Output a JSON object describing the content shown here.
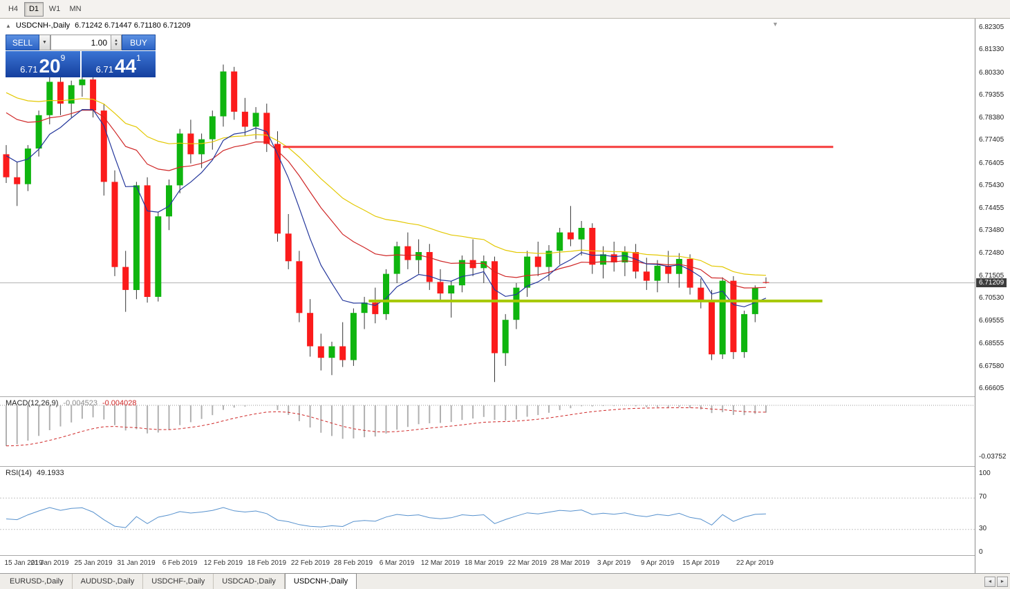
{
  "toolbar": {
    "timeframes": [
      {
        "label": "H4",
        "active": false
      },
      {
        "label": "D1",
        "active": true
      },
      {
        "label": "W1",
        "active": false
      },
      {
        "label": "MN",
        "active": false
      }
    ]
  },
  "chart": {
    "symbol_title": "USDCNH-,Daily",
    "ohlc_text": "6.71242 6.71447 6.71180 6.71209"
  },
  "one_click": {
    "sell_label": "SELL",
    "buy_label": "BUY",
    "volume": "1.00",
    "sell_price": {
      "head": "6.71",
      "big": "20",
      "sup": "9"
    },
    "buy_price": {
      "head": "6.71",
      "big": "44",
      "sup": "1"
    }
  },
  "price_axis": {
    "labels": [
      "6.82305",
      "6.81330",
      "6.80330",
      "6.79355",
      "6.78380",
      "6.77405",
      "6.76405",
      "6.75430",
      "6.74455",
      "6.73480",
      "6.72480",
      "6.71505",
      "6.70530",
      "6.69555",
      "6.68555",
      "6.67580",
      "6.66605"
    ],
    "current_tag": "6.71209"
  },
  "macd_panel": {
    "name": "MACD(12,26,9)",
    "main_value": "-0.004523",
    "signal_value": "-0.004028",
    "axis_label": "-0.03752"
  },
  "rsi_panel": {
    "name": "RSI(14)",
    "value": "49.1933",
    "levels": [
      100,
      70,
      30,
      0
    ]
  },
  "x_axis": {
    "labels": [
      {
        "text": "15 Jan 2019",
        "i": 0
      },
      {
        "text": "21 Jan 2019",
        "i": 4
      },
      {
        "text": "25 Jan 2019",
        "i": 8
      },
      {
        "text": "31 Jan 2019",
        "i": 12
      },
      {
        "text": "6 Feb 2019",
        "i": 16
      },
      {
        "text": "12 Feb 2019",
        "i": 20
      },
      {
        "text": "18 Feb 2019",
        "i": 24
      },
      {
        "text": "22 Feb 2019",
        "i": 28
      },
      {
        "text": "28 Feb 2019",
        "i": 32
      },
      {
        "text": "6 Mar 2019",
        "i": 36
      },
      {
        "text": "12 Mar 2019",
        "i": 40
      },
      {
        "text": "18 Mar 2019",
        "i": 44
      },
      {
        "text": "22 Mar 2019",
        "i": 48
      },
      {
        "text": "28 Mar 2019",
        "i": 52
      },
      {
        "text": "3 Apr 2019",
        "i": 56
      },
      {
        "text": "9 Apr 2019",
        "i": 60
      },
      {
        "text": "15 Apr 2019",
        "i": 64
      },
      {
        "text": "22 Apr 2019",
        "i": 69
      }
    ]
  },
  "tabs": {
    "items": [
      {
        "label": "EURUSD-,Daily",
        "active": false
      },
      {
        "label": "AUDUSD-,Daily",
        "active": false
      },
      {
        "label": "USDCHF-,Daily",
        "active": false
      },
      {
        "label": "USDCAD-,Daily",
        "active": false
      },
      {
        "label": "USDCNH-,Daily",
        "active": true
      }
    ],
    "scroll_left": "◄",
    "scroll_right": "►"
  },
  "chart_data": {
    "type": "candlestick",
    "symbol": "USDCNH",
    "timeframe": "Daily",
    "ylim": [
      6.66605,
      6.82305
    ],
    "current_price": 6.71209,
    "colors": {
      "bull": "#0fb50f",
      "bear": "#fb1b1b",
      "wick": "#333333",
      "bid_line": "#b0b0b0"
    },
    "candles": [
      [
        "2019.01.15",
        6.768,
        6.772,
        6.7555,
        6.758
      ],
      [
        "2019.01.16",
        6.758,
        6.7645,
        6.7455,
        6.755
      ],
      [
        "2019.01.17",
        6.755,
        6.772,
        6.752,
        6.7705
      ],
      [
        "2019.01.18",
        6.7705,
        6.787,
        6.767,
        6.785
      ],
      [
        "2019.01.21",
        6.785,
        6.803,
        6.781,
        6.7995
      ],
      [
        "2019.01.22",
        6.7995,
        6.802,
        6.785,
        6.79
      ],
      [
        "2019.01.23",
        6.79,
        6.8,
        6.784,
        6.798
      ],
      [
        "2019.01.24",
        6.798,
        6.806,
        6.793,
        6.8005
      ],
      [
        "2019.01.25",
        6.8005,
        6.803,
        6.784,
        6.787
      ],
      [
        "2019.01.28",
        6.787,
        6.79,
        6.75,
        6.756
      ],
      [
        "2019.01.29",
        6.756,
        6.761,
        6.715,
        6.719
      ],
      [
        "2019.01.30",
        6.719,
        6.726,
        6.6995,
        6.709
      ],
      [
        "2019.01.31",
        6.709,
        6.756,
        6.705,
        6.7545
      ],
      [
        "2019.02.01",
        6.7545,
        6.758,
        6.7035,
        6.706
      ],
      [
        "2019.02.04",
        6.706,
        6.743,
        6.704,
        6.741
      ],
      [
        "2019.02.05",
        6.741,
        6.757,
        6.735,
        6.7545
      ],
      [
        "2019.02.06",
        6.7545,
        6.779,
        6.751,
        6.777
      ],
      [
        "2019.02.07",
        6.777,
        6.783,
        6.764,
        6.768
      ],
      [
        "2019.02.08",
        6.768,
        6.777,
        6.762,
        6.7745
      ],
      [
        "2019.02.11",
        6.7745,
        6.787,
        6.77,
        6.7845
      ],
      [
        "2019.02.12",
        6.7845,
        6.807,
        6.78,
        6.804
      ],
      [
        "2019.02.13",
        6.804,
        6.806,
        6.783,
        6.7865
      ],
      [
        "2019.02.14",
        6.7865,
        6.7925,
        6.776,
        6.78
      ],
      [
        "2019.02.15",
        6.78,
        6.7885,
        6.7745,
        6.786
      ],
      [
        "2019.02.18",
        6.786,
        6.79,
        6.769,
        6.7725
      ],
      [
        "2019.02.19",
        6.7725,
        6.778,
        6.73,
        6.7335
      ],
      [
        "2019.02.20",
        6.7335,
        6.742,
        6.718,
        6.7215
      ],
      [
        "2019.02.21",
        6.7215,
        6.726,
        6.695,
        6.699
      ],
      [
        "2019.02.22",
        6.699,
        6.705,
        6.68,
        6.6845
      ],
      [
        "2019.02.25",
        6.6845,
        6.69,
        6.674,
        6.6795
      ],
      [
        "2019.02.26",
        6.6795,
        6.6865,
        6.672,
        6.6845
      ],
      [
        "2019.02.27",
        6.6845,
        6.695,
        6.6755,
        6.6785
      ],
      [
        "2019.02.28",
        6.6785,
        6.701,
        6.676,
        6.699
      ],
      [
        "2019.03.01",
        6.699,
        6.706,
        6.692,
        6.7035
      ],
      [
        "2019.03.04",
        6.7035,
        6.71,
        6.6945,
        6.6985
      ],
      [
        "2019.03.05",
        6.6985,
        6.718,
        6.696,
        6.716
      ],
      [
        "2019.03.06",
        6.716,
        6.73,
        6.712,
        6.728
      ],
      [
        "2019.03.07",
        6.728,
        6.734,
        6.718,
        6.722
      ],
      [
        "2019.03.08",
        6.722,
        6.731,
        6.716,
        6.7255
      ],
      [
        "2019.03.11",
        6.7255,
        6.729,
        6.709,
        6.7125
      ],
      [
        "2019.03.12",
        6.7125,
        6.718,
        6.704,
        6.7075
      ],
      [
        "2019.03.13",
        6.7075,
        6.713,
        6.697,
        6.711
      ],
      [
        "2019.03.14",
        6.711,
        6.724,
        6.708,
        6.722
      ],
      [
        "2019.03.15",
        6.722,
        6.731,
        6.715,
        6.7185
      ],
      [
        "2019.03.18",
        6.7185,
        6.724,
        6.712,
        6.7215
      ],
      [
        "2019.03.19",
        6.7215,
        6.7235,
        6.669,
        6.6815
      ],
      [
        "2019.03.20",
        6.6815,
        6.6985,
        6.676,
        6.696
      ],
      [
        "2019.03.21",
        6.696,
        6.712,
        6.692,
        6.71
      ],
      [
        "2019.03.22",
        6.71,
        6.726,
        6.706,
        6.7235
      ],
      [
        "2019.03.25",
        6.7235,
        6.73,
        6.715,
        6.719
      ],
      [
        "2019.03.26",
        6.719,
        6.7285,
        6.713,
        6.726
      ],
      [
        "2019.03.27",
        6.726,
        6.736,
        6.72,
        6.734
      ],
      [
        "2019.03.28",
        6.734,
        6.7455,
        6.728,
        6.731
      ],
      [
        "2019.03.29",
        6.731,
        6.739,
        6.724,
        6.736
      ],
      [
        "2019.04.01",
        6.736,
        6.738,
        6.716,
        6.72
      ],
      [
        "2019.04.02",
        6.72,
        6.728,
        6.714,
        6.7245
      ],
      [
        "2019.04.03",
        6.7245,
        6.73,
        6.717,
        6.721
      ],
      [
        "2019.04.04",
        6.721,
        6.728,
        6.715,
        6.7255
      ],
      [
        "2019.04.05",
        6.7255,
        6.729,
        6.714,
        6.717
      ],
      [
        "2019.04.08",
        6.717,
        6.723,
        6.709,
        6.713
      ],
      [
        "2019.04.09",
        6.713,
        6.722,
        6.708,
        6.7195
      ],
      [
        "2019.04.10",
        6.7195,
        6.726,
        6.712,
        6.716
      ],
      [
        "2019.04.11",
        6.716,
        6.725,
        6.71,
        6.7225
      ],
      [
        "2019.04.12",
        6.7225,
        6.7245,
        6.707,
        6.71
      ],
      [
        "2019.04.15",
        6.71,
        6.714,
        6.701,
        6.704
      ],
      [
        "2019.04.16",
        6.704,
        6.709,
        6.6785,
        6.681
      ],
      [
        "2019.04.17",
        6.681,
        6.7145,
        6.679,
        6.713
      ],
      [
        "2019.04.18",
        6.713,
        6.715,
        6.679,
        6.682
      ],
      [
        "2019.04.19",
        6.682,
        6.7,
        6.6795,
        6.6985
      ],
      [
        "2019.04.22",
        6.6985,
        6.711,
        6.695,
        6.71
      ],
      [
        "2019.04.23",
        6.71242,
        6.71447,
        6.7118,
        6.71209
      ]
    ],
    "moving_averages": [
      {
        "period": 34,
        "color": "#e3c800",
        "seed": 6.797
      },
      {
        "period": 20,
        "color": "#cf2626",
        "seed": 6.789
      },
      {
        "period": 8,
        "color": "#23369b",
        "seed": 6.77
      }
    ],
    "trendlines": [
      {
        "name": "resistance-line",
        "price": 6.7712,
        "i1": 25.5,
        "i2": 76.2,
        "color": "#f63b3b",
        "width": 3
      },
      {
        "name": "support-line",
        "price": 6.7042,
        "i1": 33.4,
        "i2": 75.2,
        "color": "#a6c800",
        "width": 4
      }
    ],
    "macd": {
      "fast": 12,
      "slow": 26,
      "signal_period": 9,
      "seed_fast": 6.768,
      "seed_slow": 6.7985,
      "hist_color": "#b0b0b0",
      "signal_color": "#cf2626",
      "axis_min": -0.03752
    },
    "rsi": {
      "period": 14,
      "color": "#5590cd",
      "seed_gain": 0.0046,
      "seed_loss": 0.006,
      "levels": [
        70,
        30
      ]
    }
  }
}
